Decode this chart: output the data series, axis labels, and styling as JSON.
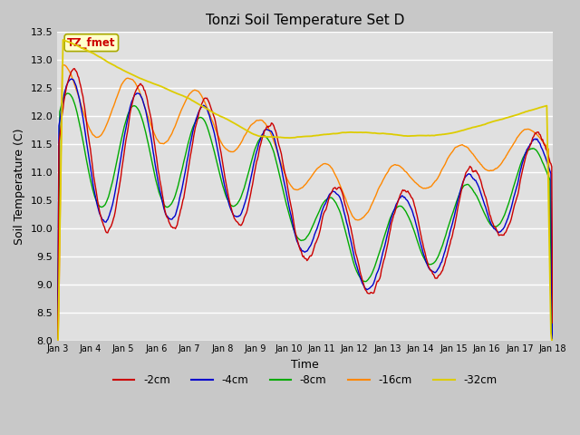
{
  "title": "Tonzi Soil Temperature Set D",
  "xlabel": "Time",
  "ylabel": "Soil Temperature (C)",
  "ylim": [
    8.0,
    13.5
  ],
  "yticks": [
    8.0,
    8.5,
    9.0,
    9.5,
    10.0,
    10.5,
    11.0,
    11.5,
    12.0,
    12.5,
    13.0,
    13.5
  ],
  "xtick_labels": [
    "Jan 3",
    "Jan 4",
    "Jan 5",
    "Jan 6",
    "Jan 7",
    "Jan 8",
    "Jan 9",
    "Jan 10",
    "Jan 11",
    "Jan 12",
    "Jan 13",
    "Jan 14",
    "Jan 15",
    "Jan 16",
    "Jan 17",
    "Jan 18"
  ],
  "colors": {
    "-2cm": "#cc0000",
    "-4cm": "#0000cc",
    "-8cm": "#00aa00",
    "-16cm": "#ff8800",
    "-32cm": "#ddcc00"
  },
  "annotation_text": "TZ_fmet",
  "annotation_color": "#cc0000",
  "annotation_bg": "#ffffcc",
  "annotation_edge": "#aaaa00",
  "fig_facecolor": "#c8c8c8",
  "ax_facecolor": "#e0e0e0",
  "grid_color": "#ffffff",
  "linewidth": 1.0,
  "n_points": 600
}
